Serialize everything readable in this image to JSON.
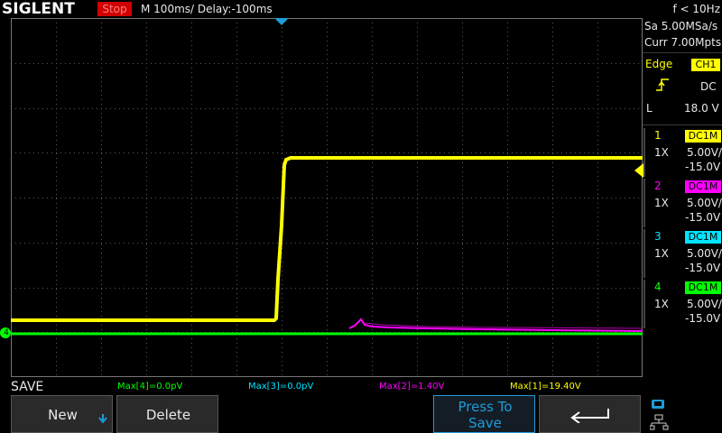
{
  "header": {
    "brand": "SIGLENT",
    "run_state": "Stop",
    "timebase": "M 100ms/  Delay:-100ms",
    "trigger_freq": "f < 10Hz"
  },
  "acquisition": {
    "sample_rate": "Sa 5.00MSa/s",
    "memory_depth": "Curr 7.00Mpts"
  },
  "trigger": {
    "type_label": "Edge",
    "source": "CH1",
    "coupling": "DC",
    "level_label": "L",
    "level_value": "18.0 V"
  },
  "channels": [
    {
      "num": "1",
      "coupling": "DC1M",
      "probe": "1X",
      "scale": "5.00V/",
      "offset": "-15.0V",
      "color": "#ffff00"
    },
    {
      "num": "2",
      "coupling": "DC1M",
      "probe": "1X",
      "scale": "5.00V/",
      "offset": "-15.0V",
      "color": "#ff00ff"
    },
    {
      "num": "3",
      "coupling": "DC1M",
      "probe": "1X",
      "scale": "5.00V/",
      "offset": "-15.0V",
      "color": "#00e5ff"
    },
    {
      "num": "4",
      "coupling": "DC1M",
      "probe": "1X",
      "scale": "5.00V/",
      "offset": "-15.0V",
      "color": "#00ff00"
    }
  ],
  "measurements": {
    "m4": "Max[4]=0.0pV",
    "m3": "Max[3]=0.0pV",
    "m2": "Max[2]=1.40V",
    "m1": "Max[1]=19.40V"
  },
  "menu": {
    "title": "SAVE",
    "new_label": "New",
    "delete_label": "Delete",
    "press_to_save_line1": "Press To",
    "press_to_save_line2": "Save"
  },
  "ch4_marker": "4",
  "colors": {
    "ch1": "#ffff00",
    "ch2": "#ff00ff",
    "ch3": "#00e5ff",
    "ch4": "#00ff00",
    "trigger_marker": "#1e9bd7",
    "grid": "#5a5a5a"
  },
  "icons": {
    "return": "return-arrow-icon",
    "network": "network-icon"
  }
}
